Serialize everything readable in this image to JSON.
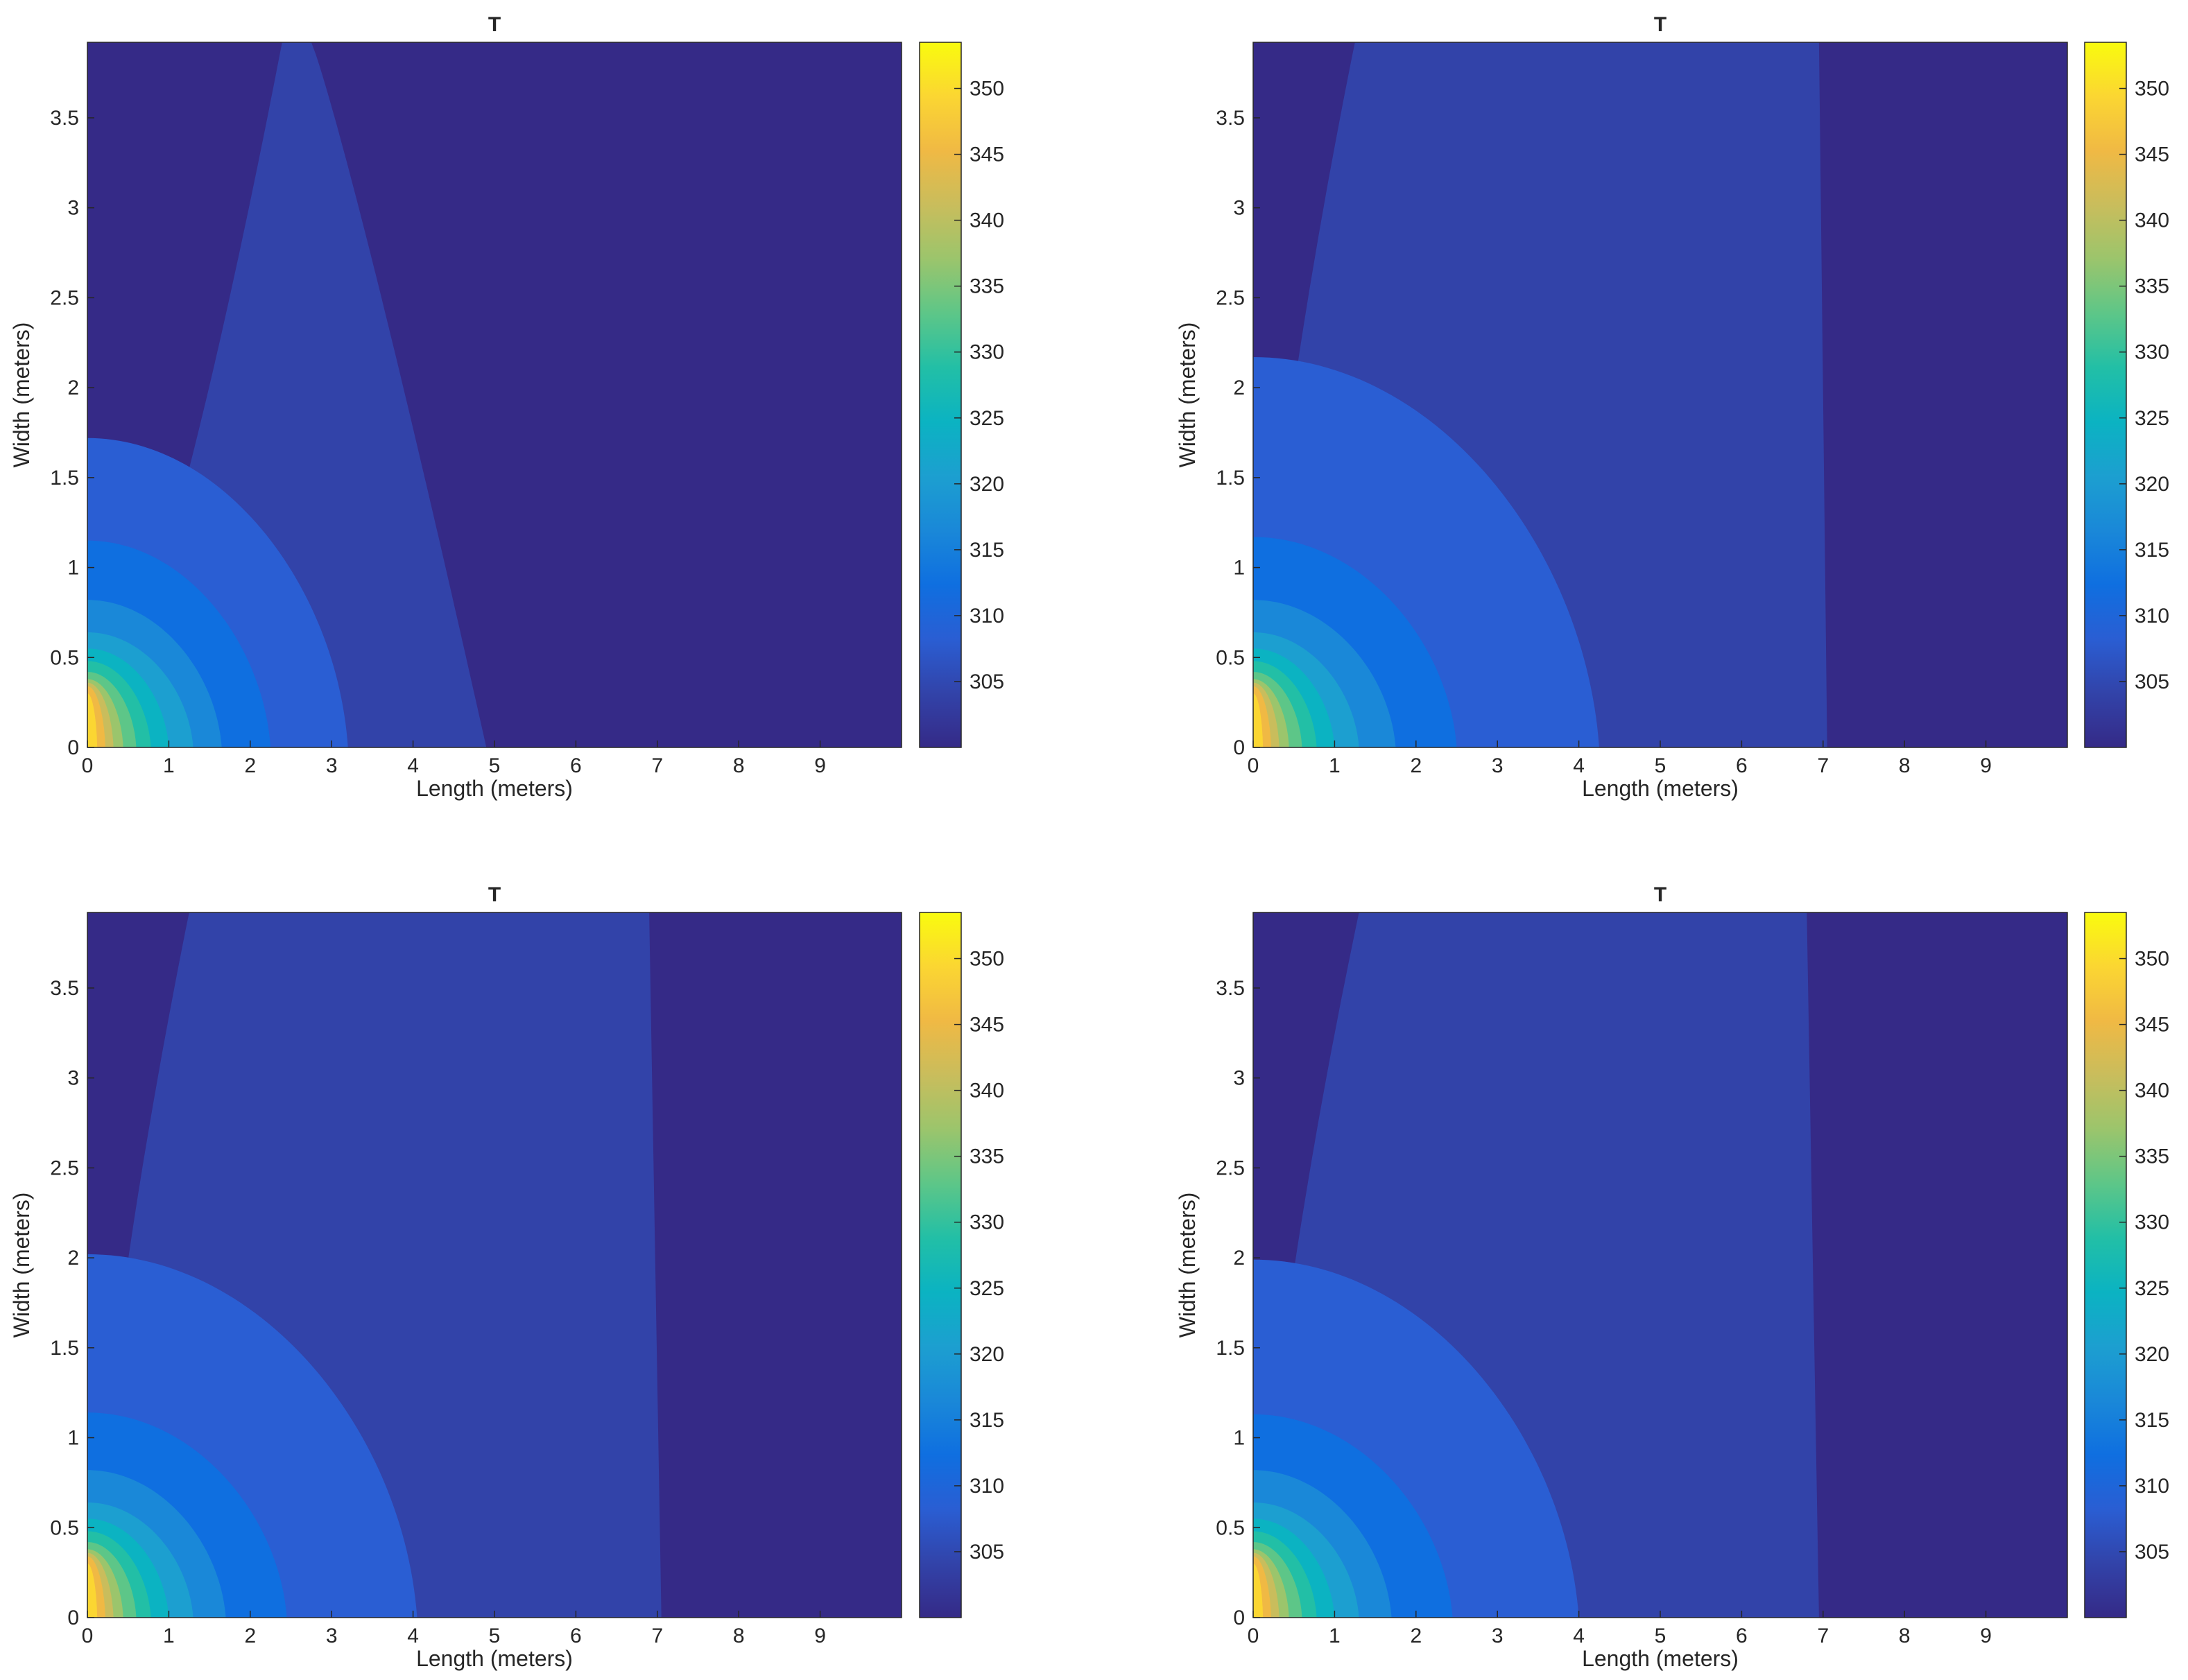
{
  "figure": {
    "layout": "2x2 grid of filled contour plots"
  },
  "colormap": {
    "name": "parula",
    "stops": [
      "#352a87",
      "#3243a9",
      "#2a5ed3",
      "#0f6fe0",
      "#1a88d8",
      "#1c9fd0",
      "#0bb3c2",
      "#22bfa6",
      "#5dc688",
      "#9bc56c",
      "#c9bd5c",
      "#f0b944",
      "#fbd632",
      "#f9fb0e"
    ],
    "min": 300,
    "max": 353.5
  },
  "chart_data": [
    {
      "type": "contourf",
      "title": "T",
      "xlabel": "Length (meters)",
      "ylabel": "Width (meters)",
      "xlim": [
        0,
        10
      ],
      "ylim": [
        0,
        3.92
      ],
      "xticks": [
        0,
        1,
        2,
        3,
        4,
        5,
        6,
        7,
        8,
        9
      ],
      "yticks": [
        0,
        0.5,
        1,
        1.5,
        2,
        2.5,
        3,
        3.5
      ],
      "ytick_labels": [
        "0",
        "0.5",
        "1",
        "1.5",
        "2",
        "2.5",
        "3",
        "3.5"
      ],
      "colorbar": {
        "ticks": [
          305,
          310,
          315,
          320,
          325,
          330,
          335,
          340,
          345,
          350
        ],
        "range": [
          300,
          353.5
        ]
      },
      "level_regions": [
        {
          "level": 1,
          "extent_x": 4.9,
          "extent_y": 3.92,
          "tail_x": 2.6
        },
        {
          "level": 2,
          "extent_x": 3.2,
          "extent_y": 1.72
        },
        {
          "level": 3,
          "extent_x": 2.25,
          "extent_y": 1.15
        },
        {
          "level": 4,
          "extent_x": 1.65,
          "extent_y": 0.82
        },
        {
          "level": 5,
          "extent_x": 1.3,
          "extent_y": 0.64
        },
        {
          "level": 6,
          "extent_x": 1.0,
          "extent_y": 0.55
        },
        {
          "level": 7,
          "extent_x": 0.78,
          "extent_y": 0.48
        },
        {
          "level": 8,
          "extent_x": 0.6,
          "extent_y": 0.42
        },
        {
          "level": 9,
          "extent_x": 0.44,
          "extent_y": 0.38
        },
        {
          "level": 10,
          "extent_x": 0.32,
          "extent_y": 0.36
        },
        {
          "level": 11,
          "extent_x": 0.22,
          "extent_y": 0.34
        },
        {
          "level": 12,
          "extent_x": 0.12,
          "extent_y": 0.3
        }
      ]
    },
    {
      "type": "contourf",
      "title": "T",
      "xlabel": "Length (meters)",
      "ylabel": "Width (meters)",
      "xlim": [
        0,
        10
      ],
      "ylim": [
        0,
        3.92
      ],
      "xticks": [
        0,
        1,
        2,
        3,
        4,
        5,
        6,
        7,
        8,
        9
      ],
      "yticks": [
        0,
        0.5,
        1,
        1.5,
        2,
        2.5,
        3,
        3.5
      ],
      "ytick_labels": [
        "0",
        "0.5",
        "1",
        "1.5",
        "2",
        "2.5",
        "3",
        "3.5"
      ],
      "colorbar": {
        "ticks": [
          305,
          310,
          315,
          320,
          325,
          330,
          335,
          340,
          345,
          350
        ],
        "range": [
          300,
          353.5
        ]
      },
      "level_regions": [
        {
          "level": 1,
          "extent_x": 7.05,
          "extent_y": 3.92,
          "band_left_top": 1.25,
          "band_right_top": 6.95
        },
        {
          "level": 2,
          "extent_x": 4.25,
          "extent_y": 2.17
        },
        {
          "level": 3,
          "extent_x": 2.5,
          "extent_y": 1.17
        },
        {
          "level": 4,
          "extent_x": 1.75,
          "extent_y": 0.82
        },
        {
          "level": 5,
          "extent_x": 1.3,
          "extent_y": 0.64
        },
        {
          "level": 6,
          "extent_x": 1.0,
          "extent_y": 0.55
        },
        {
          "level": 7,
          "extent_x": 0.78,
          "extent_y": 0.48
        },
        {
          "level": 8,
          "extent_x": 0.6,
          "extent_y": 0.42
        },
        {
          "level": 9,
          "extent_x": 0.44,
          "extent_y": 0.38
        },
        {
          "level": 10,
          "extent_x": 0.32,
          "extent_y": 0.36
        },
        {
          "level": 11,
          "extent_x": 0.22,
          "extent_y": 0.34
        },
        {
          "level": 12,
          "extent_x": 0.12,
          "extent_y": 0.3
        }
      ]
    },
    {
      "type": "contourf",
      "title": "T",
      "xlabel": "Length (meters)",
      "ylabel": "Width (meters)",
      "xlim": [
        0,
        10
      ],
      "ylim": [
        0,
        3.92
      ],
      "xticks": [
        0,
        1,
        2,
        3,
        4,
        5,
        6,
        7,
        8,
        9
      ],
      "yticks": [
        0,
        0.5,
        1,
        1.5,
        2,
        2.5,
        3,
        3.5
      ],
      "ytick_labels": [
        "0",
        "0.5",
        "1",
        "1.5",
        "2",
        "2.5",
        "3",
        "3.5"
      ],
      "colorbar": {
        "ticks": [
          305,
          310,
          315,
          320,
          325,
          330,
          335,
          340,
          345,
          350
        ],
        "range": [
          300,
          353.5
        ]
      },
      "level_regions": [
        {
          "level": 1,
          "extent_x": 7.05,
          "extent_y": 3.92,
          "band_left_top": 1.25,
          "band_right_top": 6.9
        },
        {
          "level": 2,
          "extent_x": 4.05,
          "extent_y": 2.02
        },
        {
          "level": 3,
          "extent_x": 2.45,
          "extent_y": 1.14
        },
        {
          "level": 4,
          "extent_x": 1.7,
          "extent_y": 0.82
        },
        {
          "level": 5,
          "extent_x": 1.3,
          "extent_y": 0.64
        },
        {
          "level": 6,
          "extent_x": 1.0,
          "extent_y": 0.55
        },
        {
          "level": 7,
          "extent_x": 0.78,
          "extent_y": 0.48
        },
        {
          "level": 8,
          "extent_x": 0.6,
          "extent_y": 0.42
        },
        {
          "level": 9,
          "extent_x": 0.44,
          "extent_y": 0.38
        },
        {
          "level": 10,
          "extent_x": 0.32,
          "extent_y": 0.36
        },
        {
          "level": 11,
          "extent_x": 0.22,
          "extent_y": 0.34
        },
        {
          "level": 12,
          "extent_x": 0.12,
          "extent_y": 0.3
        }
      ]
    },
    {
      "type": "contourf",
      "title": "T",
      "xlabel": "Length (meters)",
      "ylabel": "Width (meters)",
      "xlim": [
        0,
        10
      ],
      "ylim": [
        0,
        3.92
      ],
      "xticks": [
        0,
        1,
        2,
        3,
        4,
        5,
        6,
        7,
        8,
        9
      ],
      "yticks": [
        0,
        0.5,
        1,
        1.5,
        2,
        2.5,
        3,
        3.5
      ],
      "ytick_labels": [
        "0",
        "0.5",
        "1",
        "1.5",
        "2",
        "2.5",
        "3",
        "3.5"
      ],
      "colorbar": {
        "ticks": [
          305,
          310,
          315,
          320,
          325,
          330,
          335,
          340,
          345,
          350
        ],
        "range": [
          300,
          353.5
        ]
      },
      "level_regions": [
        {
          "level": 1,
          "extent_x": 6.95,
          "extent_y": 3.92,
          "band_left_top": 1.3,
          "band_right_top": 6.8
        },
        {
          "level": 2,
          "extent_x": 4.0,
          "extent_y": 1.99
        },
        {
          "level": 3,
          "extent_x": 2.45,
          "extent_y": 1.13
        },
        {
          "level": 4,
          "extent_x": 1.7,
          "extent_y": 0.82
        },
        {
          "level": 5,
          "extent_x": 1.3,
          "extent_y": 0.64
        },
        {
          "level": 6,
          "extent_x": 1.0,
          "extent_y": 0.55
        },
        {
          "level": 7,
          "extent_x": 0.78,
          "extent_y": 0.48
        },
        {
          "level": 8,
          "extent_x": 0.6,
          "extent_y": 0.42
        },
        {
          "level": 9,
          "extent_x": 0.44,
          "extent_y": 0.38
        },
        {
          "level": 10,
          "extent_x": 0.32,
          "extent_y": 0.36
        },
        {
          "level": 11,
          "extent_x": 0.22,
          "extent_y": 0.34
        },
        {
          "level": 12,
          "extent_x": 0.12,
          "extent_y": 0.3
        }
      ]
    }
  ]
}
